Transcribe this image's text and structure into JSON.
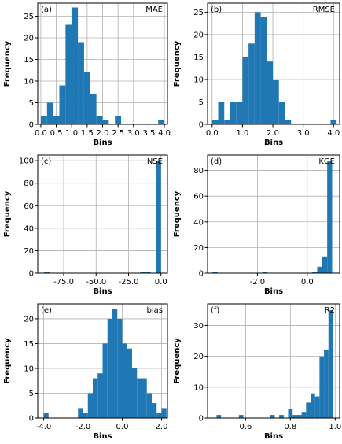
{
  "chart_data": [
    {
      "type": "bar",
      "panel_label": "(a)",
      "metric": "MAE",
      "xlabel": "Bins",
      "ylabel": "Frequency",
      "xlim": [
        -0.1,
        4.1
      ],
      "ylim": [
        0,
        28
      ],
      "xticks": [
        0,
        0.5,
        1,
        1.5,
        2,
        2.5,
        3,
        3.5,
        4
      ],
      "xtick_labels": [
        "0.0",
        "0.5",
        "1.0",
        "1.5",
        "2.0",
        "2.5",
        "3.0",
        "3.5",
        "4.0"
      ],
      "yticks": [
        0,
        5,
        10,
        15,
        20,
        25
      ],
      "ytick_labels": [
        "0",
        "5",
        "10",
        "15",
        "20",
        "25"
      ],
      "bins": [
        [
          0.0,
          0.2,
          2
        ],
        [
          0.2,
          0.4,
          5
        ],
        [
          0.4,
          0.6,
          2
        ],
        [
          0.6,
          0.8,
          9
        ],
        [
          0.8,
          1.0,
          23
        ],
        [
          1.0,
          1.2,
          27
        ],
        [
          1.2,
          1.4,
          19
        ],
        [
          1.4,
          1.6,
          12
        ],
        [
          1.6,
          1.8,
          7
        ],
        [
          1.8,
          2.0,
          2
        ],
        [
          2.0,
          2.2,
          1
        ],
        [
          2.4,
          2.6,
          2
        ],
        [
          3.8,
          4.0,
          1
        ]
      ]
    },
    {
      "type": "bar",
      "panel_label": "(b)",
      "metric": "RMSE",
      "xlabel": "Bins",
      "ylabel": "Frequency",
      "xlim": [
        -0.15,
        4.2
      ],
      "ylim": [
        0,
        27
      ],
      "xticks": [
        0,
        1,
        2,
        3,
        4
      ],
      "xtick_labels": [
        "0.0",
        "1.0",
        "2.0",
        "3.0",
        "4.0"
      ],
      "yticks": [
        0,
        5,
        10,
        15,
        20,
        25
      ],
      "ytick_labels": [
        "0",
        "5",
        "10",
        "15",
        "20",
        "25"
      ],
      "bins": [
        [
          0.0,
          0.2,
          1
        ],
        [
          0.2,
          0.4,
          5
        ],
        [
          0.4,
          0.6,
          1
        ],
        [
          0.6,
          0.8,
          5
        ],
        [
          0.8,
          1.0,
          5
        ],
        [
          1.0,
          1.2,
          15
        ],
        [
          1.2,
          1.4,
          18
        ],
        [
          1.4,
          1.6,
          25
        ],
        [
          1.6,
          1.8,
          24
        ],
        [
          1.8,
          2.0,
          14
        ],
        [
          2.0,
          2.2,
          10
        ],
        [
          2.2,
          2.4,
          5
        ],
        [
          2.4,
          2.6,
          1
        ],
        [
          3.9,
          4.1,
          1
        ]
      ]
    },
    {
      "type": "bar",
      "panel_label": "(c)",
      "metric": "NSE",
      "xlabel": "Bins",
      "ylabel": "Frequency",
      "xlim": [
        -95,
        5
      ],
      "ylim": [
        0,
        105
      ],
      "xticks": [
        -75,
        -50,
        -25,
        0
      ],
      "xtick_labels": [
        "-75.0",
        "-50.0",
        "-25.0",
        "0.0"
      ],
      "yticks": [
        0,
        20,
        40,
        60,
        80,
        100
      ],
      "ytick_labels": [
        "0",
        "20",
        "40",
        "60",
        "80",
        "100"
      ],
      "bins": [
        [
          -90,
          -86,
          1
        ],
        [
          -16,
          -12,
          1
        ],
        [
          -12,
          -8,
          1
        ],
        [
          -4,
          0,
          100
        ]
      ]
    },
    {
      "type": "bar",
      "panel_label": "(d)",
      "metric": "KGE",
      "xlabel": "Bins",
      "ylabel": "Frequency",
      "xlim": [
        -4.0,
        1.3
      ],
      "ylim": [
        0,
        92
      ],
      "xticks": [
        -2,
        0
      ],
      "xtick_labels": [
        "-2.0",
        "0.0"
      ],
      "yticks": [
        0,
        20,
        40,
        60,
        80
      ],
      "ytick_labels": [
        "0",
        "20",
        "40",
        "60",
        "80"
      ],
      "bins": [
        [
          -3.8,
          -3.6,
          1
        ],
        [
          -1.8,
          -1.6,
          1
        ],
        [
          0.2,
          0.4,
          1
        ],
        [
          0.4,
          0.6,
          5
        ],
        [
          0.6,
          0.8,
          13
        ],
        [
          0.8,
          1.0,
          87
        ]
      ]
    },
    {
      "type": "bar",
      "panel_label": "(e)",
      "metric": "bias",
      "xlabel": "Bins",
      "ylabel": "Frequency",
      "xlim": [
        -4.3,
        2.3
      ],
      "ylim": [
        0,
        23
      ],
      "xticks": [
        -4,
        -2,
        0,
        2
      ],
      "xtick_labels": [
        "-4.0",
        "-2.0",
        "0.0",
        "2.0"
      ],
      "yticks": [
        0,
        5,
        10,
        15,
        20
      ],
      "ytick_labels": [
        "0",
        "5",
        "10",
        "15",
        "20"
      ],
      "bins": [
        [
          -4.0,
          -3.75,
          1
        ],
        [
          -2.25,
          -2.0,
          2
        ],
        [
          -2.0,
          -1.75,
          1
        ],
        [
          -1.75,
          -1.5,
          5
        ],
        [
          -1.5,
          -1.25,
          8
        ],
        [
          -1.25,
          -1.0,
          9
        ],
        [
          -1.0,
          -0.75,
          15
        ],
        [
          -0.75,
          -0.5,
          20
        ],
        [
          -0.5,
          -0.25,
          22
        ],
        [
          -0.25,
          0.0,
          20
        ],
        [
          0.0,
          0.25,
          15
        ],
        [
          0.25,
          0.5,
          14
        ],
        [
          0.5,
          0.75,
          10
        ],
        [
          0.75,
          1.0,
          8
        ],
        [
          1.0,
          1.25,
          8
        ],
        [
          1.25,
          1.5,
          5
        ],
        [
          1.5,
          1.75,
          3
        ],
        [
          1.75,
          2.0,
          1
        ],
        [
          2.0,
          2.25,
          2
        ]
      ]
    },
    {
      "type": "bar",
      "panel_label": "(f)",
      "metric": "R2",
      "xlabel": "Bins",
      "ylabel": "Frequency",
      "xlim": [
        0.43,
        1.02
      ],
      "ylim": [
        0,
        37
      ],
      "xticks": [
        0.6,
        0.8,
        1.0
      ],
      "xtick_labels": [
        "0.6",
        "0.8",
        "1.0"
      ],
      "yticks": [
        0,
        10,
        20,
        30
      ],
      "ytick_labels": [
        "0",
        "10",
        "20",
        "30"
      ],
      "bins": [
        [
          0.47,
          0.49,
          1
        ],
        [
          0.57,
          0.59,
          1
        ],
        [
          0.71,
          0.73,
          1
        ],
        [
          0.75,
          0.77,
          1
        ],
        [
          0.79,
          0.81,
          3
        ],
        [
          0.81,
          0.83,
          1
        ],
        [
          0.83,
          0.85,
          1
        ],
        [
          0.85,
          0.87,
          2
        ],
        [
          0.87,
          0.89,
          5
        ],
        [
          0.89,
          0.91,
          8
        ],
        [
          0.91,
          0.93,
          7
        ],
        [
          0.93,
          0.95,
          20
        ],
        [
          0.95,
          0.97,
          22
        ],
        [
          0.97,
          0.99,
          35
        ]
      ]
    }
  ],
  "colors": {
    "bar": "#1f77b4",
    "grid": "#b0b0b0",
    "axis": "#000000"
  }
}
